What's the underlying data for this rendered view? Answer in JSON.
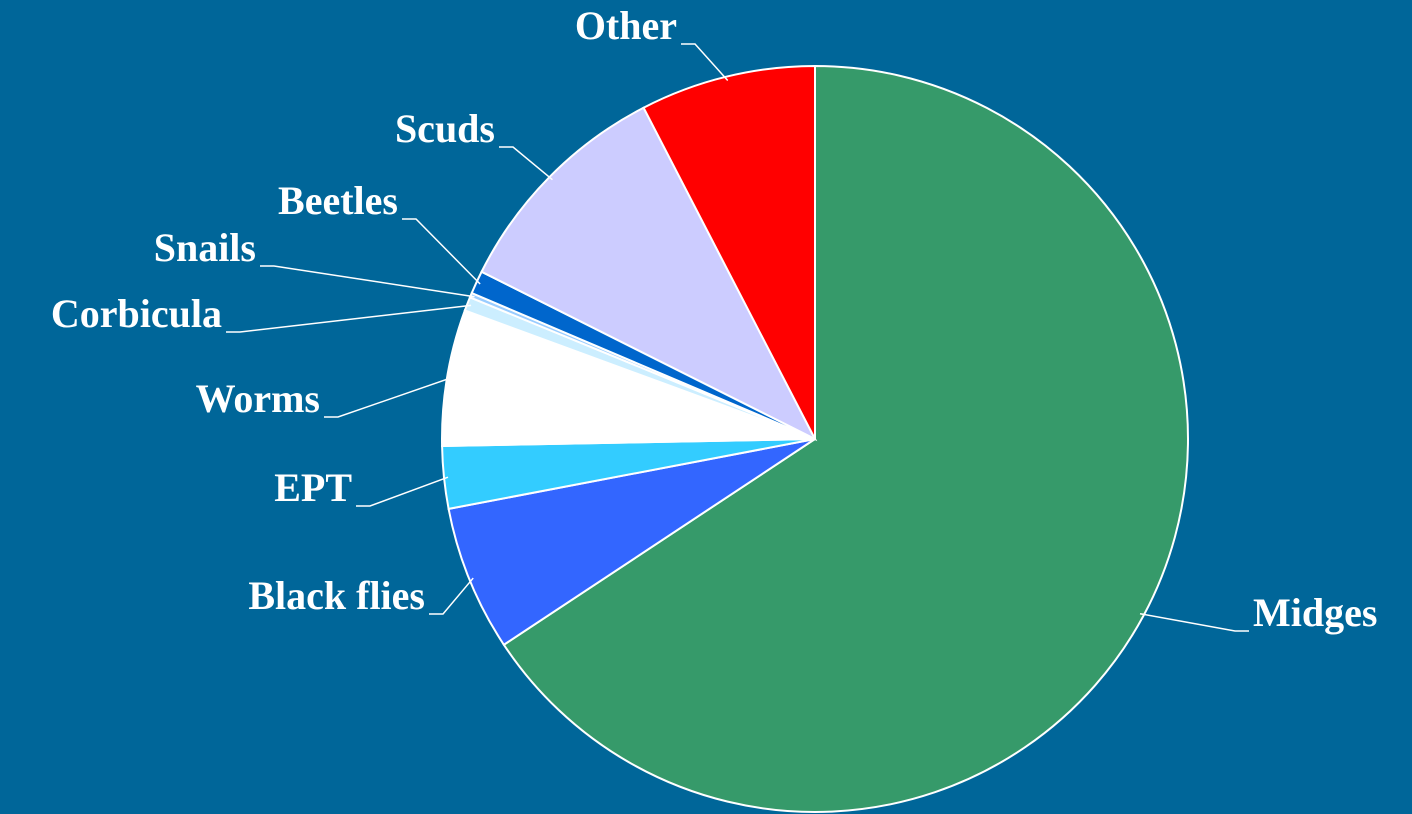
{
  "chart_data": {
    "type": "pie",
    "categories": [
      "Midges",
      "Black flies",
      "EPT",
      "Worms",
      "Corbicula",
      "Snails",
      "Beetles",
      "Scuds",
      "Other"
    ],
    "values": [
      65.7,
      6.3,
      2.7,
      5.9,
      0.6,
      0.2,
      1.0,
      10.0,
      7.6
    ],
    "colors": [
      "#369a6a",
      "#3366ff",
      "#33ccff",
      "#ffffff",
      "#cceeff",
      "#99ccff",
      "#0066cc",
      "#ccccff",
      "#ff0000"
    ],
    "start_angle": 0,
    "direction": "clockwise"
  }
}
